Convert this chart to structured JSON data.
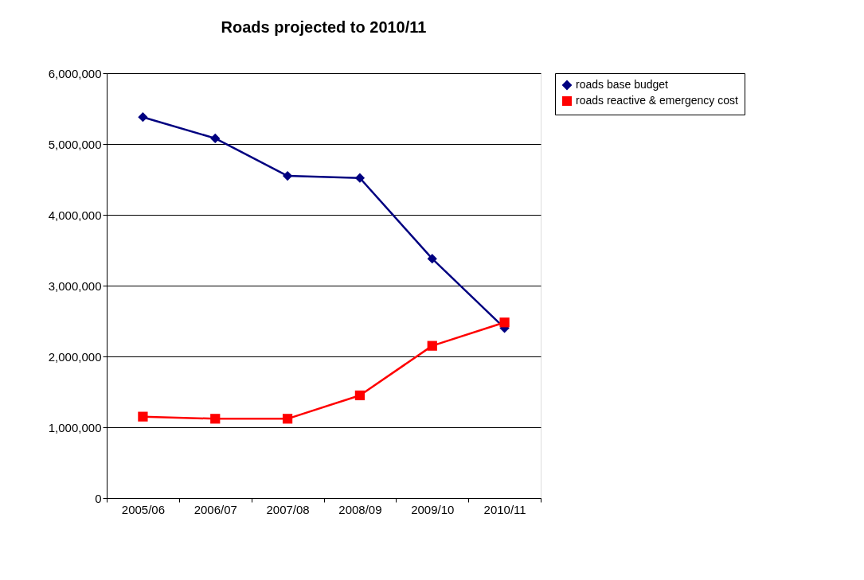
{
  "chart_data": {
    "type": "line",
    "title": "Roads projected to 2010/11",
    "categories": [
      "2005/06",
      "2006/07",
      "2007/08",
      "2008/09",
      "2009/10",
      "2010/11"
    ],
    "series": [
      {
        "name": "roads base budget",
        "color": "#000080",
        "marker": "diamond",
        "values": [
          5380000,
          5080000,
          4550000,
          4520000,
          3380000,
          2400000
        ]
      },
      {
        "name": "roads reactive & emergency cost",
        "color": "#ff0000",
        "marker": "square",
        "values": [
          1150000,
          1120000,
          1120000,
          1450000,
          2150000,
          2480000
        ]
      }
    ],
    "ylim": [
      0,
      6000000
    ],
    "yticks": [
      0,
      {
        "value": 1000000,
        "label": "1,000,000"
      },
      {
        "value": 2000000,
        "label": "2,000,000"
      },
      {
        "value": 3000000,
        "label": "3,000,000"
      },
      {
        "value": 4000000,
        "label": "4,000,000"
      },
      {
        "value": 5000000,
        "label": "5,000,000"
      },
      {
        "value": 6000000,
        "label": "6,000,000"
      }
    ],
    "grid": "y",
    "legend": "right",
    "line_style": "solid"
  }
}
